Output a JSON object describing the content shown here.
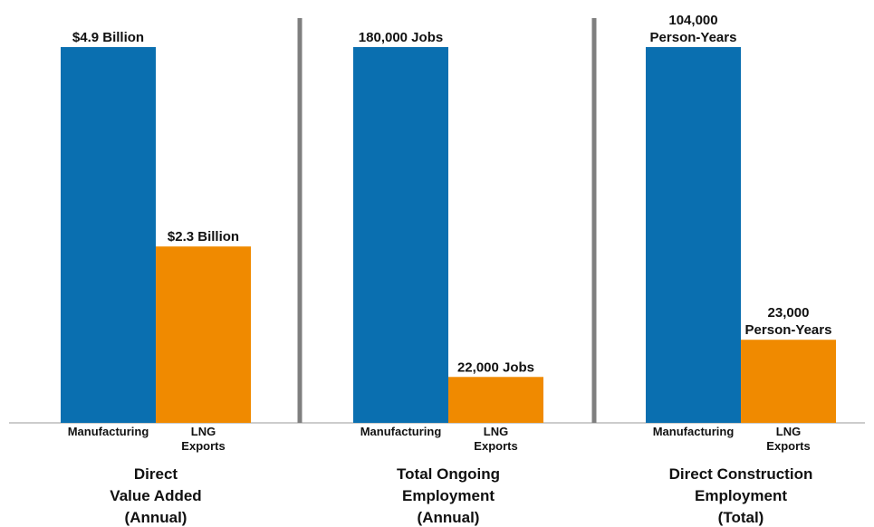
{
  "chart_data": {
    "type": "bar",
    "categories": [
      "Manufacturing",
      "LNG\nExports"
    ],
    "colors": {
      "Manufacturing": "#0a6fb0",
      "LNG Exports": "#f08a00",
      "divider": "#7f7f7f",
      "baseline": "#9a9a9a"
    },
    "panels": [
      {
        "title": [
          "Direct",
          "Value Added",
          "(Annual)"
        ],
        "values": [
          4.9,
          2.3
        ],
        "unit": "Billion",
        "data_labels": [
          [
            "$4.9 Billion"
          ],
          [
            "$2.3 Billion"
          ]
        ]
      },
      {
        "title": [
          "Total Ongoing",
          "Employment",
          "(Annual)"
        ],
        "values": [
          180000,
          22000
        ],
        "unit": "Jobs",
        "data_labels": [
          [
            "180,000 Jobs"
          ],
          [
            "22,000 Jobs"
          ]
        ]
      },
      {
        "title": [
          "Direct Construction",
          "Employment",
          "(Total)"
        ],
        "values": [
          104000,
          23000
        ],
        "unit": "Person-Years",
        "data_labels": [
          [
            "104,000",
            "Person-Years"
          ],
          [
            "23,000",
            "Person-Years"
          ]
        ]
      }
    ],
    "axes": "none",
    "grid": false,
    "legend": "none"
  }
}
